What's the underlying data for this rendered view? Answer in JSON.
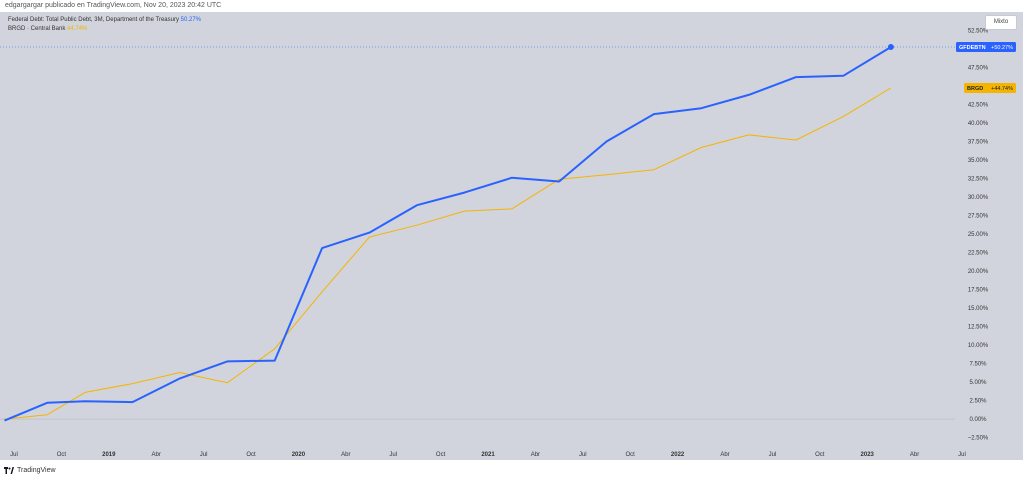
{
  "attribution": "edgargargar publicado en TradingView.com, Nov 20, 2023 20:42 UTC",
  "legend": [
    {
      "label": "Federal Debt: Total Public Debt, 3M, Department of the Treasury",
      "value": "50.27%",
      "color": "#2962ff"
    },
    {
      "label": "BRGD · Central Bank",
      "value": "44.74%",
      "color": "#f5b400"
    }
  ],
  "mode_button": "Mixto",
  "footer": "TradingView",
  "colors": {
    "background": "#d1d4dc",
    "blue": "#2962ff",
    "orange": "#f5b400"
  },
  "chart_data": {
    "type": "line",
    "x_tick_labels": [
      "Jul",
      "Oct",
      "2019",
      "Abr",
      "Jul",
      "Oct",
      "2020",
      "Abr",
      "Jul",
      "Oct",
      "2021",
      "Abr",
      "Jul",
      "Oct",
      "2022",
      "Abr",
      "Jul",
      "Oct",
      "2023",
      "Abr",
      "Jul"
    ],
    "x_tick_emphasis": [
      false,
      false,
      true,
      false,
      false,
      false,
      true,
      false,
      false,
      false,
      true,
      false,
      false,
      false,
      true,
      false,
      false,
      false,
      true,
      false,
      false
    ],
    "y_tick_labels": [
      "52.50%",
      "50.00%",
      "47.50%",
      "45.00%",
      "42.50%",
      "40.00%",
      "37.50%",
      "35.00%",
      "32.50%",
      "30.00%",
      "27.50%",
      "25.00%",
      "22.50%",
      "20.00%",
      "17.50%",
      "15.00%",
      "12.50%",
      "10.00%",
      "7.50%",
      "5.00%",
      "2.50%",
      "0.00%",
      "−2.50%"
    ],
    "y_tick_values": [
      52.5,
      50,
      47.5,
      45,
      42.5,
      40,
      37.5,
      35,
      32.5,
      30,
      27.5,
      25,
      22.5,
      20,
      17.5,
      15,
      12.5,
      10,
      7.5,
      5,
      2.5,
      0,
      -2.5
    ],
    "ylim": [
      -3.5,
      55
    ],
    "series": [
      {
        "name": "GFDEBTN",
        "label": "GFDEBTN",
        "last_value": "+50.27%",
        "color": "#2962ff",
        "x": [
          -0.2,
          0.7,
          1.5,
          2.5,
          3.5,
          4.5,
          5.5,
          6.5,
          7.5,
          8.5,
          9.5,
          10.5,
          11.5,
          12.5,
          13.5,
          14.5,
          15.5,
          16.5,
          17.5,
          18.5
        ],
        "values": [
          -0.2,
          2.2,
          2.4,
          2.3,
          5.5,
          7.8,
          7.9,
          23.1,
          25.2,
          28.9,
          30.6,
          32.6,
          32.1,
          37.5,
          41.2,
          42.0,
          43.8,
          46.2,
          46.4,
          50.27
        ]
      },
      {
        "name": "BRGD",
        "label": "BRGD",
        "last_value": "+44.74%",
        "color": "#f5b400",
        "x": [
          -0.2,
          0.7,
          1.5,
          2.5,
          3.5,
          4.5,
          5.5,
          6.5,
          7.5,
          8.5,
          9.5,
          10.5,
          11.5,
          12.5,
          13.5,
          14.5,
          15.5,
          16.5,
          17.5,
          18.5
        ],
        "values": [
          0.0,
          0.6,
          3.6,
          4.8,
          6.3,
          4.9,
          9.5,
          17.2,
          24.6,
          26.2,
          28.1,
          28.4,
          32.4,
          33.0,
          33.7,
          36.7,
          38.4,
          37.7,
          40.9,
          44.74
        ]
      }
    ]
  }
}
